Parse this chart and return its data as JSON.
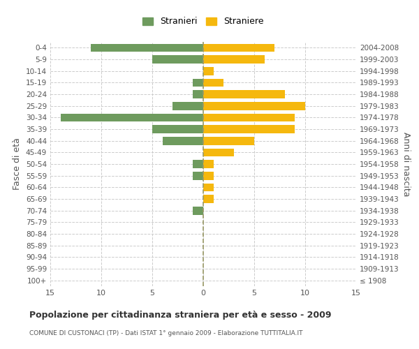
{
  "age_groups": [
    "100+",
    "95-99",
    "90-94",
    "85-89",
    "80-84",
    "75-79",
    "70-74",
    "65-69",
    "60-64",
    "55-59",
    "50-54",
    "45-49",
    "40-44",
    "35-39",
    "30-34",
    "25-29",
    "20-24",
    "15-19",
    "10-14",
    "5-9",
    "0-4"
  ],
  "birth_years": [
    "≤ 1908",
    "1909-1913",
    "1914-1918",
    "1919-1923",
    "1924-1928",
    "1929-1933",
    "1934-1938",
    "1939-1943",
    "1944-1948",
    "1949-1953",
    "1954-1958",
    "1959-1963",
    "1964-1968",
    "1969-1973",
    "1974-1978",
    "1979-1983",
    "1984-1988",
    "1989-1993",
    "1994-1998",
    "1999-2003",
    "2004-2008"
  ],
  "males": [
    0,
    0,
    0,
    0,
    0,
    0,
    1,
    0,
    0,
    1,
    1,
    0,
    4,
    5,
    14,
    3,
    1,
    1,
    0,
    5,
    11
  ],
  "females": [
    0,
    0,
    0,
    0,
    0,
    0,
    0,
    1,
    1,
    1,
    1,
    3,
    5,
    9,
    9,
    10,
    8,
    2,
    1,
    6,
    7
  ],
  "male_color": "#6e9b5e",
  "female_color": "#f5b80e",
  "grid_color": "#cccccc",
  "axis_color": "#888888",
  "bg_color": "#ffffff",
  "title": "Popolazione per cittadinanza straniera per età e sesso - 2009",
  "subtitle": "COMUNE DI CUSTONACI (TP) - Dati ISTAT 1° gennaio 2009 - Elaborazione TUTTITALIA.IT",
  "ylabel_left": "Fasce di età",
  "ylabel_right": "Anni di nascita",
  "legend_stranieri": "Stranieri",
  "legend_straniere": "Straniere",
  "xlim": 15
}
